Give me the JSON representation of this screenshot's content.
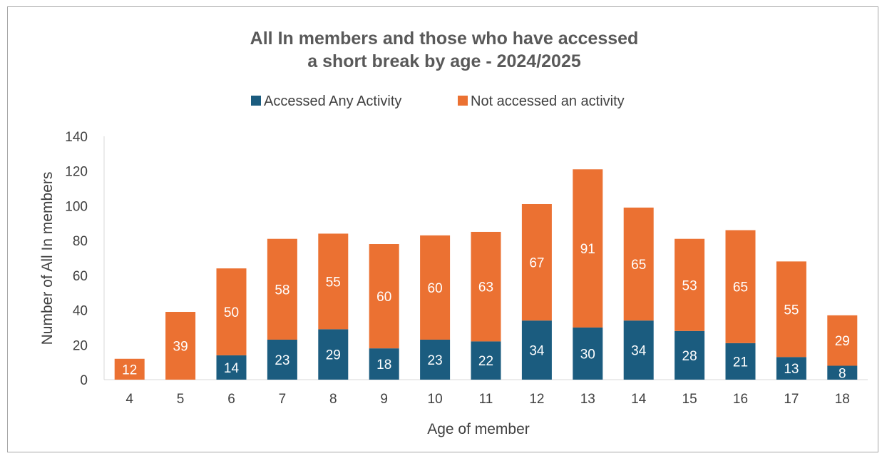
{
  "chart_data": {
    "type": "bar",
    "stacked": true,
    "title_lines": [
      "All In members and those who have accessed",
      "a short break by age - 2024/2025"
    ],
    "xlabel": "Age of member",
    "ylabel": "Number of All In members",
    "categories": [
      "4",
      "5",
      "6",
      "7",
      "8",
      "9",
      "10",
      "11",
      "12",
      "13",
      "14",
      "15",
      "16",
      "17",
      "18"
    ],
    "series": [
      {
        "name": "Accessed Any Activity",
        "color": "#1b5c7f",
        "values": [
          0,
          0,
          14,
          23,
          29,
          18,
          23,
          22,
          34,
          30,
          34,
          28,
          21,
          13,
          8
        ]
      },
      {
        "name": "Not accessed an activity",
        "color": "#eb7132",
        "values": [
          12,
          39,
          50,
          58,
          55,
          60,
          60,
          63,
          67,
          91,
          65,
          53,
          65,
          55,
          29
        ]
      }
    ],
    "ylim": [
      0,
      140
    ],
    "yticks": [
      "0",
      "20",
      "40",
      "60",
      "80",
      "100",
      "120",
      "140"
    ],
    "grid": false,
    "legend_position": "top",
    "data_labels": true
  }
}
